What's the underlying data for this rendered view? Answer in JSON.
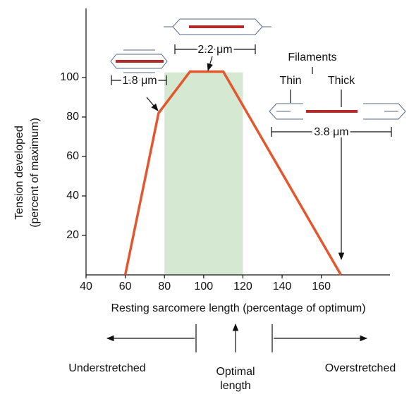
{
  "chart_data": {
    "type": "line",
    "x_label": "Resting sarcomere length (percentage of optimum)",
    "y_label": [
      "Tension developed",
      "(percent of maximum)"
    ],
    "x": [
      60,
      77,
      93,
      110,
      170
    ],
    "series": [
      {
        "color": "#e4572e",
        "values": [
          0,
          82,
          103,
          103,
          0
        ]
      }
    ],
    "xlim": [
      40,
      195
    ],
    "ylim": [
      0,
      135
    ],
    "xticks": [
      40,
      60,
      80,
      100,
      120,
      140,
      160
    ],
    "yticks": [
      20,
      40,
      60,
      80,
      100
    ],
    "optimal_range": [
      80,
      120
    ],
    "optimal_color": "#d5e9d2",
    "annotations": {
      "short": "1.8 μm",
      "optimal": "2.2 μm",
      "long": "3.8 μm",
      "filaments": "Filaments",
      "thin": "Thin",
      "thick": "Thick"
    },
    "zones": {
      "under": "Understretched",
      "optimal": [
        "Optimal",
        "length"
      ],
      "over": "Overstretched"
    }
  }
}
